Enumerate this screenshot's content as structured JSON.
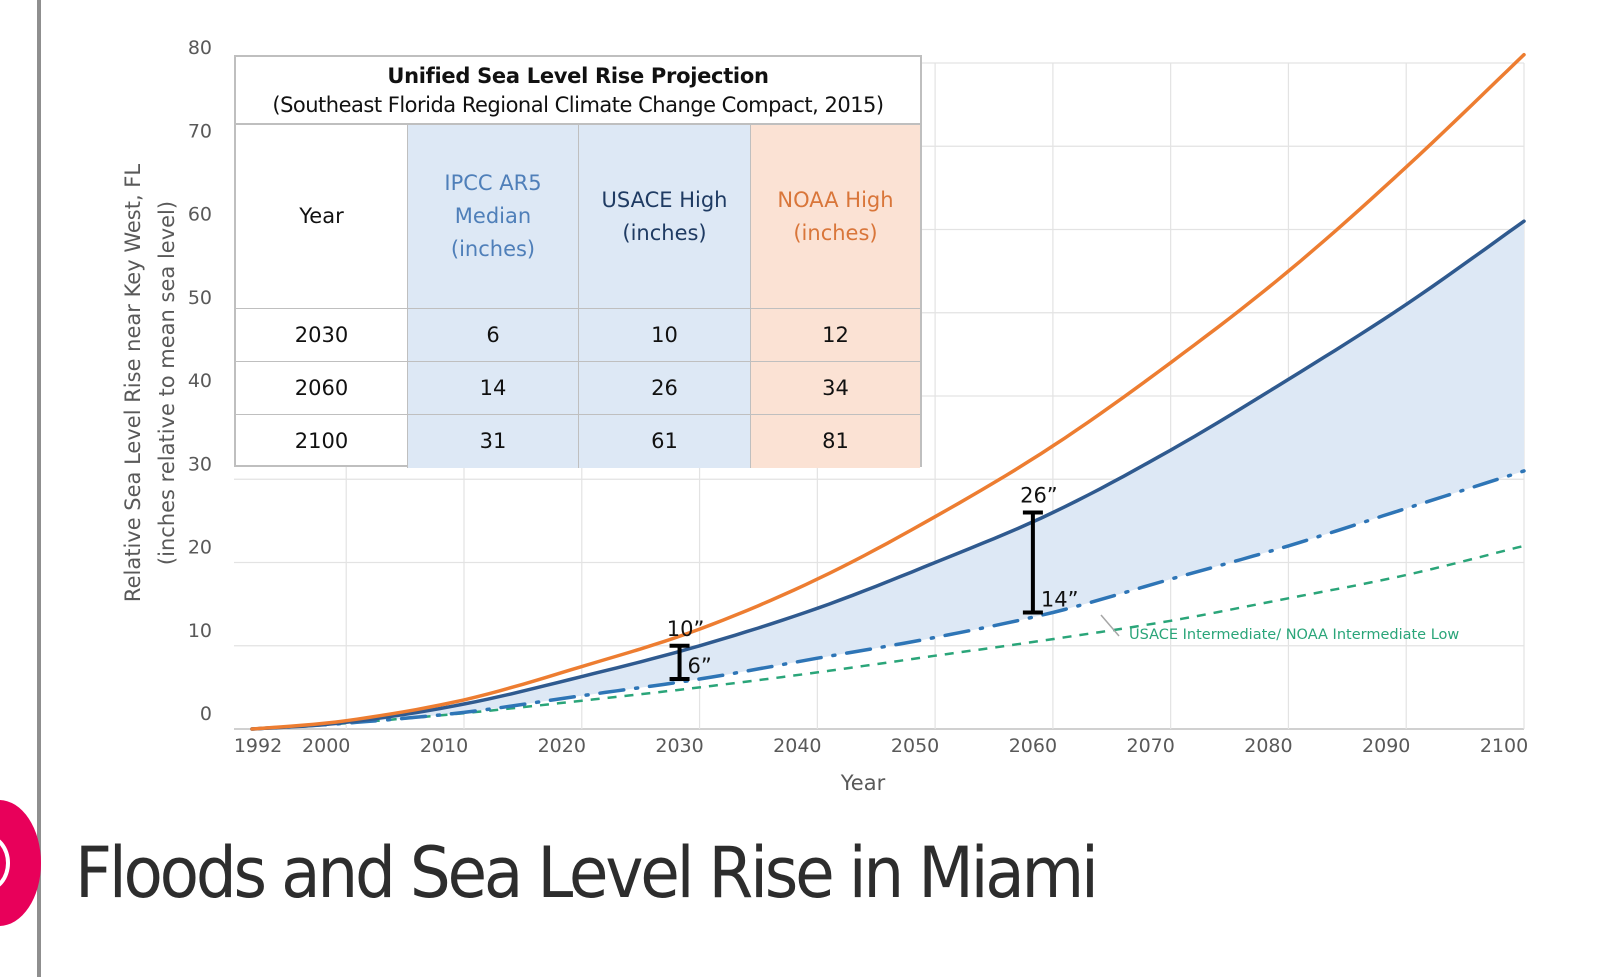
{
  "page": {
    "title": "Floods and Sea Level Rise in Miami"
  },
  "controls": {
    "fab_icon": "concentric-rings-icon",
    "accent_color": "#e8005a"
  },
  "chart_data": {
    "type": "line",
    "xlabel": "Year",
    "ylabel": "Relative Sea Level Rise near Key West, FL",
    "ylabel_sub": "(inches relative to mean sea level)",
    "xlim": [
      1992,
      2100
    ],
    "ylim": [
      0,
      80
    ],
    "grid": true,
    "x_ticks": [
      "1992",
      "2000",
      "2010",
      "2020",
      "2030",
      "2040",
      "2050",
      "2060",
      "2070",
      "2080",
      "2090",
      "2100"
    ],
    "y_ticks": [
      "0",
      "10",
      "20",
      "30",
      "40",
      "50",
      "60",
      "70",
      "80"
    ],
    "x": [
      1992,
      2000,
      2010,
      2020,
      2030,
      2040,
      2050,
      2060,
      2070,
      2080,
      2090,
      2100
    ],
    "series": [
      {
        "name": "NOAA High",
        "style": "solid",
        "color": "#ed7d31",
        "values": [
          0,
          1,
          3.5,
          7.5,
          12,
          18,
          25.5,
          34,
          44,
          55,
          67.5,
          81
        ]
      },
      {
        "name": "USACE High",
        "style": "solid",
        "color": "#2f5a8f",
        "values": [
          0,
          0.8,
          3,
          6.3,
          10,
          14.5,
          20,
          26,
          33.5,
          42,
          51,
          61
        ]
      },
      {
        "name": "IPCC AR5 Median",
        "style": "dash-dot",
        "color": "#2e75b6",
        "values": [
          0,
          0.7,
          2,
          4,
          6,
          8.5,
          11,
          14,
          18,
          22,
          26.5,
          31
        ]
      },
      {
        "name": "USACE Intermediate/ NOAA Intermediate Low",
        "style": "dashed",
        "color": "#2aa579",
        "values": [
          0,
          0.7,
          1.9,
          3.4,
          5,
          6.8,
          8.8,
          10.8,
          13,
          15.7,
          18.5,
          22
        ]
      }
    ],
    "shaded_band": {
      "between": [
        "USACE High",
        "IPCC AR5 Median"
      ],
      "color": "#dde8f5"
    },
    "annotations": [
      {
        "year": 2030,
        "low": 6,
        "high": 10,
        "low_label": "6”",
        "high_label": "10”"
      },
      {
        "year": 2060,
        "low": 14,
        "high": 26,
        "low_label": "14”",
        "high_label": "26”"
      }
    ],
    "series_label": "USACE Intermediate/ NOAA Intermediate Low",
    "table": {
      "title": "Unified Sea Level Rise Projection",
      "subtitle": "(Southeast Florida Regional Climate Change Compact, 2015)",
      "headers": [
        "Year",
        "IPCC AR5\nMedian\n(inches)",
        "USACE High\n(inches)",
        "NOAA High\n(inches)"
      ],
      "rows": [
        [
          "2030",
          "6",
          "10",
          "12"
        ],
        [
          "2060",
          "14",
          "26",
          "34"
        ],
        [
          "2100",
          "31",
          "61",
          "81"
        ]
      ]
    }
  }
}
